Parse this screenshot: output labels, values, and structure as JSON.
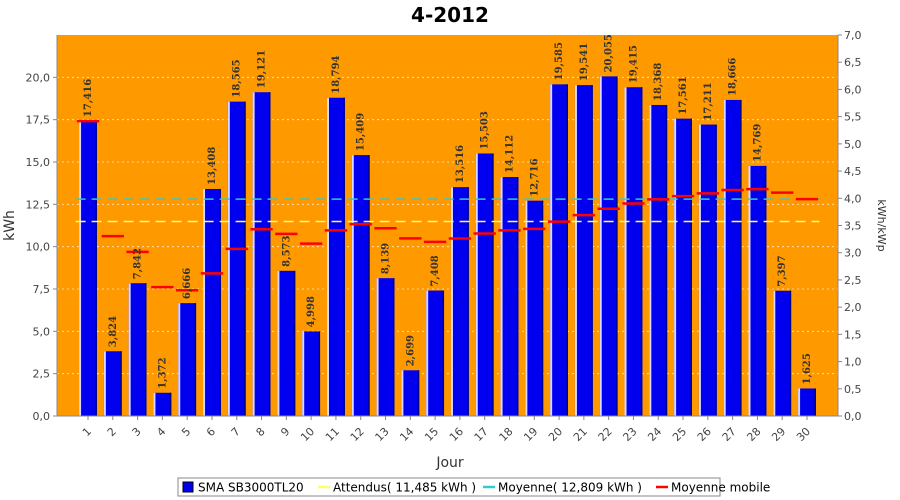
{
  "chart_data": {
    "type": "bar",
    "title": "4-2012",
    "xlabel": "Jour",
    "ylabel": "kWh",
    "y2label": "kWh/kWp",
    "ylim": [
      0,
      22.5
    ],
    "y2lim": [
      0,
      7.0
    ],
    "yticks": [
      "0,0",
      "2,5",
      "5,0",
      "7,5",
      "10,0",
      "12,5",
      "15,0",
      "17,5",
      "20,0"
    ],
    "y2ticks": [
      "0,0",
      "0,5",
      "1,0",
      "1,5",
      "2,0",
      "2,5",
      "3,0",
      "3,5",
      "4,0",
      "4,5",
      "5,0",
      "5,5",
      "6,0",
      "6,5",
      "7,0"
    ],
    "categories": [
      "1",
      "2",
      "3",
      "4",
      "5",
      "6",
      "7",
      "8",
      "9",
      "10",
      "11",
      "12",
      "13",
      "14",
      "15",
      "16",
      "17",
      "18",
      "19",
      "20",
      "21",
      "22",
      "23",
      "24",
      "25",
      "26",
      "27",
      "28",
      "29",
      "30"
    ],
    "series": [
      {
        "name": "SMA SB3000TL20",
        "values": [
          17.416,
          3.824,
          7.842,
          1.372,
          6.666,
          13.408,
          18.565,
          19.121,
          8.573,
          4.998,
          18.794,
          15.409,
          8.139,
          2.699,
          7.408,
          13.516,
          15.503,
          14.112,
          12.716,
          19.585,
          19.541,
          20.055,
          19.415,
          18.368,
          17.561,
          17.211,
          18.666,
          14.769,
          7.397,
          1.625
        ],
        "labels": [
          "17,416",
          "3,824",
          "7,842",
          "1,372",
          "6,666",
          "13,408",
          "18,565",
          "19,121",
          "8,573",
          "4,998",
          "18,794",
          "15,409",
          "8,139",
          "2,699",
          "7,408",
          "13,516",
          "15,503",
          "14,112",
          "12,716",
          "19,585",
          "19,541",
          "20,055",
          "19,415",
          "18,368",
          "17,561",
          "17,211",
          "18,666",
          "14,769",
          "7,397",
          "1,625"
        ],
        "color": "#0000ee"
      },
      {
        "name": "Moyenne mobile",
        "values": [
          17.416,
          10.62,
          9.694,
          7.614,
          7.424,
          8.421,
          9.87,
          11.026,
          10.754,
          10.178,
          10.961,
          11.332,
          11.086,
          10.487,
          10.282,
          10.484,
          10.779,
          10.96,
          11.052,
          11.479,
          11.863,
          12.236,
          12.548,
          12.791,
          12.982,
          13.145,
          13.349,
          13.4,
          13.193,
          12.809
        ],
        "color": "#ff0000"
      }
    ],
    "attendus": {
      "name": "Attendus( 11,485 kWh )",
      "value": 11.485,
      "color": "#ffff66"
    },
    "moyenne": {
      "name": "Moyenne( 12,809 kWh )",
      "value": 12.809,
      "color": "#33cccc"
    },
    "plot_bg": "#ff9900",
    "grid": true
  }
}
